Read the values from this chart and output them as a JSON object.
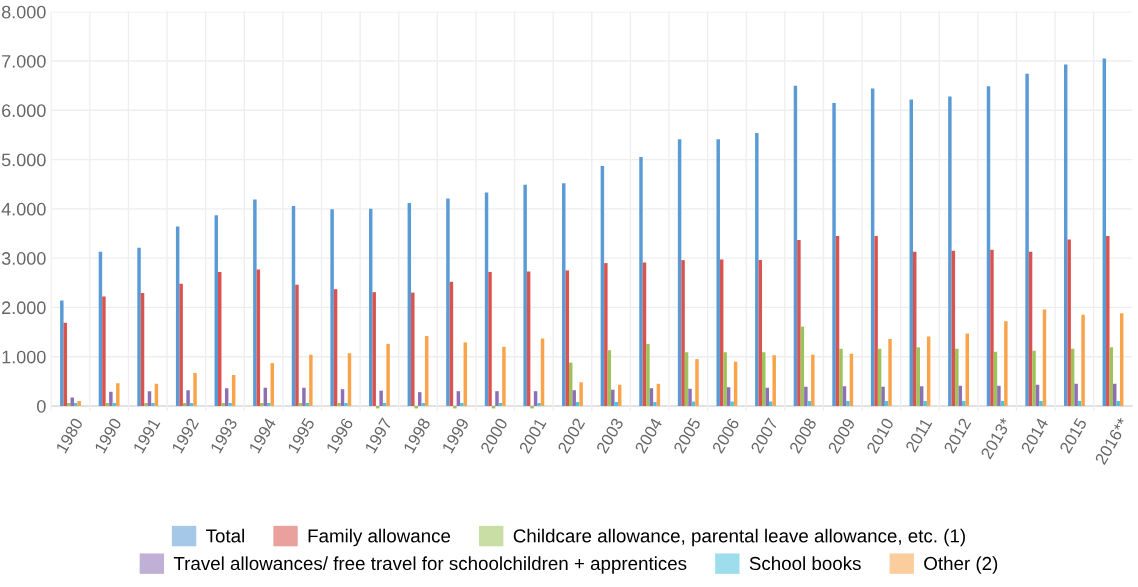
{
  "chart_data": {
    "type": "bar",
    "categories": [
      "1980",
      "1990",
      "1991",
      "1992",
      "1993",
      "1994",
      "1995",
      "1996",
      "1997",
      "1998",
      "1999",
      "2000",
      "2001",
      "2002",
      "2003",
      "2004",
      "2005",
      "2006",
      "2007",
      "2008",
      "2009",
      "2010",
      "2011",
      "2012",
      "2013*",
      "2014",
      "2015",
      "2016**"
    ],
    "series": [
      {
        "name": "Total",
        "color": "#5b9bd5",
        "values": [
          2140,
          3130,
          3210,
          3640,
          3870,
          4190,
          4060,
          3990,
          4000,
          4120,
          4210,
          4330,
          4490,
          4520,
          4870,
          5050,
          5410,
          5410,
          5540,
          6500,
          6150,
          6440,
          6220,
          6280,
          6490,
          6740,
          6930,
          7050
        ]
      },
      {
        "name": "Family allowance",
        "color": "#d9534f",
        "values": [
          1690,
          2220,
          2290,
          2480,
          2720,
          2770,
          2460,
          2370,
          2310,
          2300,
          2520,
          2720,
          2730,
          2750,
          2900,
          2910,
          2960,
          2970,
          2960,
          3370,
          3450,
          3450,
          3130,
          3150,
          3170,
          3130,
          3380,
          3450
        ]
      },
      {
        "name": "Childcare allowance, parental leave allowance, etc. (1)",
        "color": "#9dc35a",
        "values": [
          60,
          60,
          60,
          60,
          60,
          60,
          60,
          60,
          -50,
          -50,
          -50,
          -50,
          -50,
          880,
          1130,
          1260,
          1090,
          1090,
          1090,
          1610,
          1160,
          1160,
          1190,
          1160,
          1100,
          1120,
          1160,
          1190
        ]
      },
      {
        "name": "Travel allowances/ free travel for schoolchildren + apprentices",
        "color": "#8e6fb5",
        "values": [
          170,
          290,
          300,
          320,
          360,
          370,
          370,
          340,
          310,
          280,
          300,
          300,
          300,
          320,
          330,
          360,
          350,
          380,
          370,
          390,
          400,
          390,
          400,
          410,
          410,
          430,
          450,
          450
        ]
      },
      {
        "name": "School books",
        "color": "#4fc3dc",
        "values": [
          60,
          60,
          60,
          60,
          60,
          60,
          60,
          60,
          60,
          60,
          60,
          60,
          60,
          80,
          80,
          80,
          90,
          90,
          90,
          100,
          100,
          100,
          100,
          100,
          100,
          100,
          100,
          100
        ]
      },
      {
        "name": "Other (2)",
        "color": "#f9a44a",
        "values": [
          100,
          460,
          450,
          670,
          630,
          870,
          1040,
          1070,
          1260,
          1420,
          1290,
          1200,
          1370,
          480,
          430,
          450,
          950,
          900,
          1030,
          1040,
          1060,
          1360,
          1410,
          1470,
          1720,
          1960,
          1850,
          1880
        ]
      }
    ],
    "ylim": [
      -100,
      8000
    ],
    "yticks": [
      {
        "value": 0,
        "label": "0"
      },
      {
        "value": 1000,
        "label": "1.000"
      },
      {
        "value": 2000,
        "label": "2.000"
      },
      {
        "value": 3000,
        "label": "3.000"
      },
      {
        "value": 4000,
        "label": "4.000"
      },
      {
        "value": 5000,
        "label": "5.000"
      },
      {
        "value": 6000,
        "label": "6.000"
      },
      {
        "value": 7000,
        "label": "7.000"
      },
      {
        "value": 8000,
        "label": "8.000"
      }
    ],
    "grid": true,
    "legend": "bottom"
  }
}
